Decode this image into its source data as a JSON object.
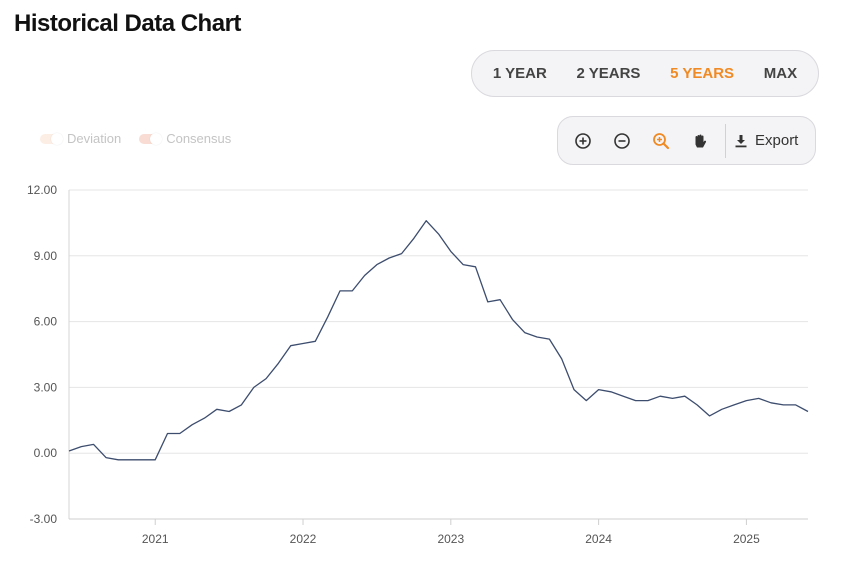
{
  "page": {
    "title": "Historical Data Chart"
  },
  "range_selector": {
    "options": [
      "1 YEAR",
      "2 YEARS",
      "5 YEARS",
      "MAX"
    ],
    "selected": "5 YEARS"
  },
  "legend": {
    "items": [
      {
        "label": "Deviation"
      },
      {
        "label": "Consensus"
      }
    ]
  },
  "toolbar": {
    "icons": [
      "zoom-in-icon",
      "zoom-out-icon",
      "zoom-select-icon",
      "pan-hand-icon",
      "download-icon"
    ],
    "export_label": "Export",
    "active_color": "#f08a24"
  },
  "colors": {
    "accent": "#f08a24",
    "line": "#3d4d6e",
    "grid": "#e5e5e5"
  },
  "chart_data": {
    "type": "line",
    "title": "Historical Data Chart",
    "xlabel": "",
    "ylabel": "",
    "x_range": [
      "2020-06",
      "2025-06"
    ],
    "ylim": [
      -3,
      12
    ],
    "y_ticks": [
      "12.00",
      "9.00",
      "6.00",
      "3.00",
      "0.00",
      "-3.00"
    ],
    "x_ticks": [
      "2021",
      "2022",
      "2023",
      "2024",
      "2025"
    ],
    "grid": true,
    "series": [
      {
        "x": [
          "2020-06",
          "2020-07",
          "2020-08",
          "2020-09",
          "2020-10",
          "2020-11",
          "2020-12",
          "2021-01",
          "2021-02",
          "2021-03",
          "2021-04",
          "2021-05",
          "2021-06",
          "2021-07",
          "2021-08",
          "2021-09",
          "2021-10",
          "2021-11",
          "2021-12",
          "2022-01",
          "2022-02",
          "2022-03",
          "2022-04",
          "2022-05",
          "2022-06",
          "2022-07",
          "2022-08",
          "2022-09",
          "2022-10",
          "2022-11",
          "2022-12",
          "2023-01",
          "2023-02",
          "2023-03",
          "2023-04",
          "2023-05",
          "2023-06",
          "2023-07",
          "2023-08",
          "2023-09",
          "2023-10",
          "2023-11",
          "2023-12",
          "2024-01",
          "2024-02",
          "2024-03",
          "2024-04",
          "2024-05",
          "2024-06",
          "2024-07",
          "2024-08",
          "2024-09",
          "2024-10",
          "2024-11",
          "2024-12",
          "2025-01",
          "2025-02",
          "2025-03",
          "2025-04",
          "2025-05",
          "2025-06"
        ],
        "values": [
          0.1,
          0.3,
          0.4,
          -0.2,
          -0.3,
          -0.3,
          -0.3,
          -0.3,
          0.9,
          0.9,
          1.3,
          1.6,
          2.0,
          1.9,
          2.2,
          3.0,
          3.4,
          4.1,
          4.9,
          5.0,
          5.1,
          6.2,
          7.4,
          7.4,
          8.1,
          8.6,
          8.9,
          9.1,
          9.8,
          10.6,
          10.0,
          9.2,
          8.6,
          8.5,
          6.9,
          7.0,
          6.1,
          5.5,
          5.3,
          5.2,
          4.3,
          2.9,
          2.4,
          2.9,
          2.8,
          2.6,
          2.4,
          2.4,
          2.6,
          2.5,
          2.6,
          2.2,
          1.7,
          2.0,
          2.2,
          2.4,
          2.5,
          2.3,
          2.2,
          2.2,
          1.9
        ]
      }
    ]
  }
}
